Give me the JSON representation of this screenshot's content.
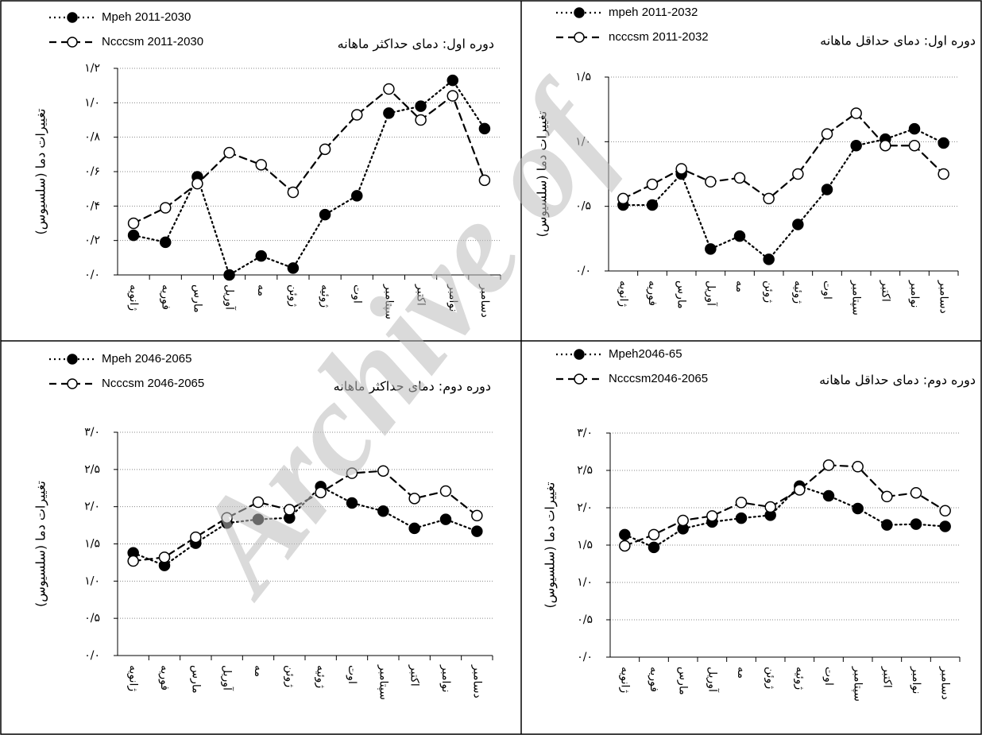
{
  "watermark": "Archive of",
  "chart_data": [
    {
      "type": "line",
      "title": "دوره اول: دمای حداکثر ماهانه",
      "y_label": "تغییرات دما (سلسیوس)",
      "categories": [
        "ژانویه",
        "فوریه",
        "مارس",
        "آوریل",
        "مه",
        "ژوئن",
        "ژوئیه",
        "اوت",
        "سپتامبر",
        "اکتبر",
        "نوامبر",
        "دسامبر"
      ],
      "series": [
        {
          "name": "Mpeh 2011-2030",
          "color": "#000000",
          "line_style": "dotted",
          "marker": "filled",
          "values": [
            0.23,
            0.19,
            0.57,
            0.0,
            0.11,
            0.04,
            0.35,
            0.46,
            0.94,
            0.98,
            1.13,
            0.85
          ]
        },
        {
          "name": "Ncccsm 2011-2030",
          "color": "#000000",
          "line_style": "dashed",
          "marker": "open",
          "values": [
            0.3,
            0.39,
            0.53,
            0.71,
            0.64,
            0.48,
            0.73,
            0.93,
            1.08,
            0.9,
            1.04,
            0.55
          ]
        }
      ],
      "ylim": [
        0,
        1.2
      ],
      "yticks": [
        {
          "value": 0,
          "label": "۰/۰"
        },
        {
          "value": 0.2,
          "label": "۰/۲"
        },
        {
          "value": 0.4,
          "label": "۰/۴"
        },
        {
          "value": 0.6,
          "label": "۰/۶"
        },
        {
          "value": 0.8,
          "label": "۰/۸"
        },
        {
          "value": 1.0,
          "label": "۱/۰"
        },
        {
          "value": 1.2,
          "label": "۱/۲"
        }
      ],
      "grid": true
    },
    {
      "type": "line",
      "title": "دوره اول: دمای حداقل ماهانه",
      "y_label": "تغییرات دما (سلسیوس)",
      "categories": [
        "ژانویه",
        "فوریه",
        "مارس",
        "آوریل",
        "مه",
        "ژوئن",
        "ژوئیه",
        "اوت",
        "سپتامبر",
        "اکتبر",
        "نوامبر",
        "دسامبر"
      ],
      "series": [
        {
          "name": "mpeh 2011-2032",
          "color": "#000000",
          "line_style": "dotted",
          "marker": "filled",
          "values": [
            0.51,
            0.51,
            0.75,
            0.17,
            0.27,
            0.09,
            0.36,
            0.63,
            0.97,
            1.02,
            1.1,
            0.99
          ]
        },
        {
          "name": "ncccsm 2011-2032",
          "color": "#000000",
          "line_style": "dashed",
          "marker": "open",
          "values": [
            0.56,
            0.67,
            0.79,
            0.69,
            0.72,
            0.56,
            0.75,
            1.06,
            1.22,
            0.97,
            0.97,
            0.75
          ]
        }
      ],
      "ylim": [
        0,
        1.5
      ],
      "yticks": [
        {
          "value": 0,
          "label": "۰/۰"
        },
        {
          "value": 0.5,
          "label": "۰/۵"
        },
        {
          "value": 1.0,
          "label": "۱/۰"
        },
        {
          "value": 1.5,
          "label": "۱/۵"
        }
      ],
      "grid": true
    },
    {
      "type": "line",
      "title": "دوره دوم: دمای حداکثر ماهانه",
      "y_label": "تغییرات دما (سلسیوس)",
      "categories": [
        "ژانویه",
        "فوریه",
        "مارس",
        "آوریل",
        "مه",
        "ژوئن",
        "ژوئیه",
        "اوت",
        "سپتامبر",
        "اکتبر",
        "نوامبر",
        "دسامبر"
      ],
      "series": [
        {
          "name": "Mpeh 2046-2065",
          "color": "#000000",
          "line_style": "dotted",
          "marker": "filled",
          "values": [
            1.38,
            1.21,
            1.51,
            1.78,
            1.83,
            1.85,
            2.27,
            2.05,
            1.94,
            1.71,
            1.83,
            1.67
          ]
        },
        {
          "name": "Ncccsm 2046-2065",
          "color": "#000000",
          "line_style": "dashed",
          "marker": "open",
          "values": [
            1.27,
            1.32,
            1.59,
            1.85,
            2.06,
            1.96,
            2.19,
            2.45,
            2.48,
            2.11,
            2.21,
            1.88
          ]
        }
      ],
      "ylim": [
        0,
        3.0
      ],
      "yticks": [
        {
          "value": 0,
          "label": "۰/۰"
        },
        {
          "value": 0.5,
          "label": "۰/۵"
        },
        {
          "value": 1.0,
          "label": "۱/۰"
        },
        {
          "value": 1.5,
          "label": "۱/۵"
        },
        {
          "value": 2.0,
          "label": "۲/۰"
        },
        {
          "value": 2.5,
          "label": "۲/۵"
        },
        {
          "value": 3.0,
          "label": "۳/۰"
        }
      ],
      "grid": true
    },
    {
      "type": "line",
      "title": "دوره دوم: دمای حداقل ماهانه",
      "y_label": "تغییرات دما (سلسیوس)",
      "categories": [
        "ژانویه",
        "فوریه",
        "مارس",
        "آوریل",
        "مه",
        "ژوئن",
        "ژوئیه",
        "اوت",
        "سپتامبر",
        "اکتبر",
        "نوامبر",
        "دسامبر"
      ],
      "series": [
        {
          "name": "Mpeh2046-65",
          "color": "#000000",
          "line_style": "dotted",
          "marker": "filled",
          "values": [
            1.64,
            1.47,
            1.72,
            1.81,
            1.86,
            1.9,
            2.29,
            2.16,
            1.99,
            1.77,
            1.78,
            1.75
          ]
        },
        {
          "name": "Ncccsm2046-2065",
          "color": "#000000",
          "line_style": "dashed",
          "marker": "open",
          "values": [
            1.49,
            1.64,
            1.83,
            1.89,
            2.07,
            2.01,
            2.24,
            2.57,
            2.55,
            2.15,
            2.2,
            1.96
          ]
        }
      ],
      "ylim": [
        0,
        3.0
      ],
      "yticks": [
        {
          "value": 0,
          "label": "۰/۰"
        },
        {
          "value": 0.5,
          "label": "۰/۵"
        },
        {
          "value": 1.0,
          "label": "۱/۰"
        },
        {
          "value": 1.5,
          "label": "۱/۵"
        },
        {
          "value": 2.0,
          "label": "۲/۰"
        },
        {
          "value": 2.5,
          "label": "۲/۵"
        },
        {
          "value": 3.0,
          "label": "۳/۰"
        }
      ],
      "grid": true
    }
  ]
}
